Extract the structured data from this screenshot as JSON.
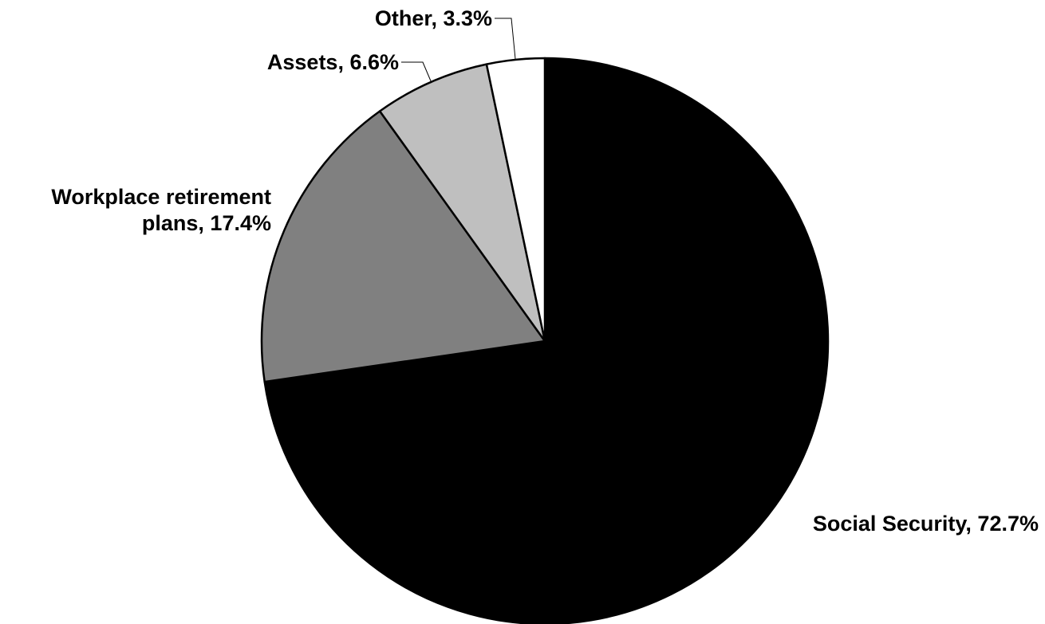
{
  "chart_data": {
    "type": "pie",
    "title": "",
    "start_angle_deg": 0,
    "direction": "clockwise",
    "slices": [
      {
        "name": "Social Security",
        "value": 72.7,
        "color": "#000000",
        "label_lines": [
          "Social Security, 72.7%"
        ]
      },
      {
        "name": "Workplace retirement plans",
        "value": 17.4,
        "color": "#808080",
        "label_lines": [
          "Workplace retirement",
          "plans, 17.4%"
        ]
      },
      {
        "name": "Assets",
        "value": 6.6,
        "color": "#bfbfbf",
        "label_lines": [
          "Assets, 6.6%"
        ]
      },
      {
        "name": "Other",
        "value": 3.3,
        "color": "#ffffff",
        "label_lines": [
          "Other, 3.3%"
        ]
      }
    ],
    "legend": "none",
    "slice_border_color": "#000000"
  }
}
